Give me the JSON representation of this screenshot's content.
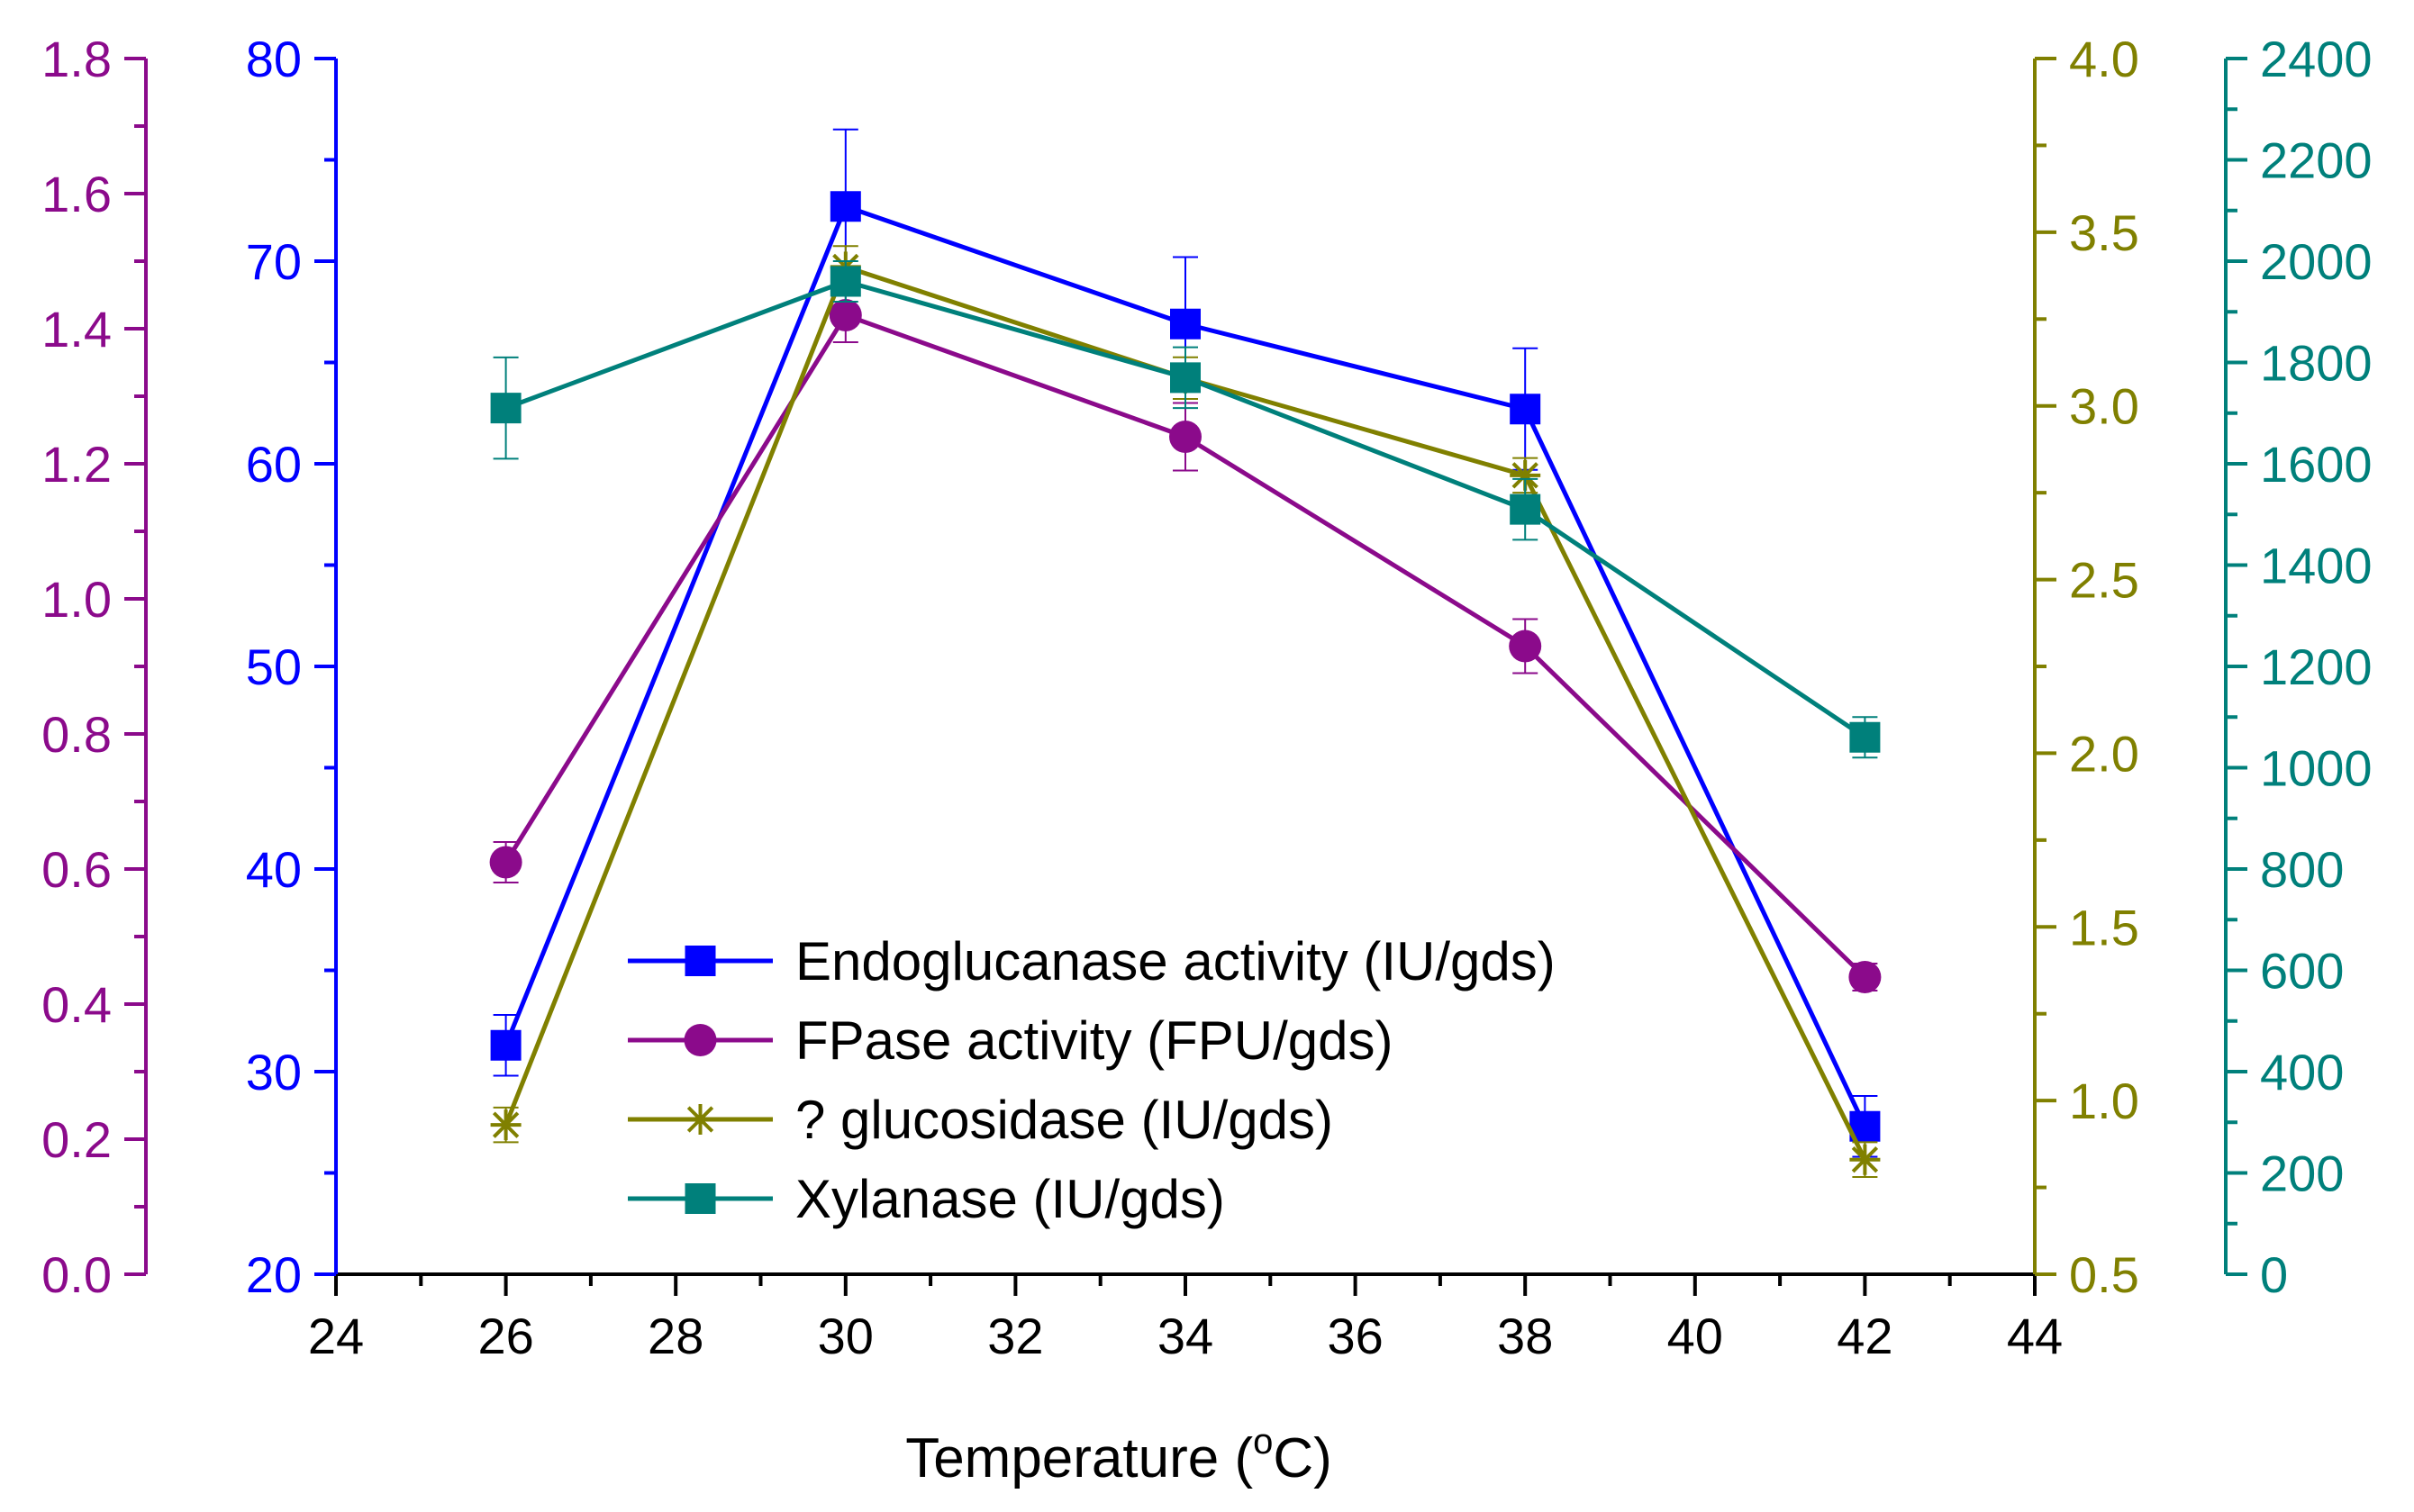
{
  "chart_data": {
    "type": "line",
    "title": "",
    "xlabel": "Temperature (°C)",
    "xlabel_parts": {
      "main": "Temperature (",
      "sup": "o",
      "unit": "C)"
    },
    "xlim": [
      24,
      44
    ],
    "xticks": [
      "24",
      "26",
      "28",
      "30",
      "32",
      "34",
      "36",
      "38",
      "40",
      "42",
      "44"
    ],
    "x": [
      26,
      30,
      34,
      38,
      42
    ],
    "axes": {
      "purple_left": {
        "color": "#8B0A8B",
        "ylim": [
          0.0,
          1.8
        ],
        "ticks": [
          "0.0",
          "0.2",
          "0.4",
          "0.6",
          "0.8",
          "1.0",
          "1.2",
          "1.4",
          "1.6",
          "1.8"
        ]
      },
      "blue_left": {
        "color": "#0000FF",
        "ylim": [
          20,
          80
        ],
        "ticks": [
          "20",
          "30",
          "40",
          "50",
          "60",
          "70",
          "80"
        ]
      },
      "olive_right": {
        "color": "#808000",
        "ylim": [
          0.5,
          4.0
        ],
        "ticks": [
          "0.5",
          "1.0",
          "1.5",
          "2.0",
          "2.5",
          "3.0",
          "3.5",
          "4.0"
        ]
      },
      "teal_right": {
        "color": "#00807B",
        "ylim": [
          0,
          2400
        ],
        "ticks": [
          "0",
          "200",
          "400",
          "600",
          "800",
          "1000",
          "1200",
          "1400",
          "1600",
          "1800",
          "2000",
          "2200",
          "2400"
        ]
      }
    },
    "series": [
      {
        "name": "Endoglucanase activity (IU/gds)",
        "axis": "blue_left",
        "color": "#0000FF",
        "marker": "square",
        "values": [
          31.3,
          72.7,
          66.9,
          62.7,
          27.3
        ],
        "errors": [
          1.5,
          3.8,
          3.3,
          3.0,
          1.5
        ]
      },
      {
        "name": "FPase activity (FPU/gds)",
        "axis": "purple_left",
        "color": "#8B0A8B",
        "marker": "circle",
        "values": [
          0.61,
          1.42,
          1.24,
          0.93,
          0.44
        ],
        "errors": [
          0.03,
          0.04,
          0.05,
          0.04,
          0.02
        ]
      },
      {
        "name": "? glucosidase (IU/gds)",
        "axis": "olive_right",
        "color": "#808000",
        "marker": "star",
        "values": [
          0.93,
          3.4,
          3.08,
          2.8,
          0.83
        ],
        "errors": [
          0.05,
          0.06,
          0.06,
          0.05,
          0.05
        ]
      },
      {
        "name": "Xylanase (IU/gds)",
        "axis": "teal_right",
        "color": "#00807B",
        "marker": "square",
        "values": [
          1710,
          1960,
          1770,
          1510,
          1060
        ],
        "errors": [
          100,
          40,
          60,
          60,
          40
        ]
      }
    ],
    "legend_position": "bottom-center"
  }
}
